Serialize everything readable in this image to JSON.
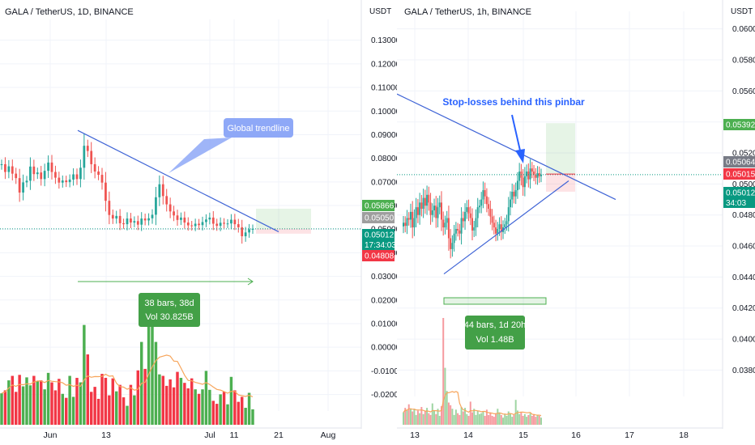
{
  "chart_data": [
    {
      "type": "candlestick",
      "title": "GALA / TetherUS, 1D, BINANCE",
      "y_unit_label": "USDT",
      "y_ticks": [
        "0.13000",
        "0.12000",
        "0.11000",
        "0.10000",
        "0.09000",
        "0.08000",
        "0.07000",
        "0.06000",
        "0.05000",
        "0.04000",
        "0.03000",
        "0.02000",
        "0.01000",
        "0.00000",
        "-0.01000",
        "-0.02000"
      ],
      "ylim": [
        -0.027,
        0.134
      ],
      "x_ticks": [
        "Jun",
        "13",
        "Jul",
        "11",
        "21",
        "Aug"
      ],
      "price_labels": [
        {
          "value": "0.05866",
          "color": "#4caf50"
        },
        {
          "value": "0.05050",
          "color": "#9e9e9e"
        },
        {
          "value": "0.05012",
          "color": "#089981",
          "extra": "17:34:03"
        },
        {
          "value": "0.04808",
          "color": "#f23645"
        }
      ],
      "annotations": [
        {
          "text": "Global trendline",
          "kind": "callout"
        },
        {
          "text": "38 bars, 38d",
          "kind": "range"
        },
        {
          "text": "Vol 30.825B",
          "kind": "range"
        }
      ],
      "closes": [
        0.0775,
        0.0742,
        0.0766,
        0.0735,
        0.0716,
        0.0655,
        0.0698,
        0.0705,
        0.0765,
        0.0733,
        0.074,
        0.0712,
        0.0747,
        0.0782,
        0.0742,
        0.0718,
        0.0697,
        0.0706,
        0.0699,
        0.071,
        0.0732,
        0.0712,
        0.076,
        0.0853,
        0.0831,
        0.0775,
        0.0744,
        0.073,
        0.0697,
        0.062,
        0.056,
        0.0545,
        0.0556,
        0.0525,
        0.0521,
        0.0545,
        0.0528,
        0.0534,
        0.0519,
        0.0545,
        0.0537,
        0.0546,
        0.0561,
        0.0635,
        0.069,
        0.064,
        0.0605,
        0.0575,
        0.0558,
        0.0539,
        0.0549,
        0.0528,
        0.0516,
        0.0513,
        0.0523,
        0.0517,
        0.053,
        0.0541,
        0.0549,
        0.0523,
        0.0514,
        0.0527,
        0.0523,
        0.0524,
        0.054,
        0.0521,
        0.0508,
        0.047,
        0.0486,
        0.0499,
        0.0501
      ],
      "volumes": [
        6.3,
        6.9,
        8.9,
        9.8,
        6.6,
        10.0,
        7.7,
        9.5,
        7.9,
        9.8,
        8.7,
        8.9,
        7.1,
        10.4,
        8.5,
        6.9,
        9.2,
        6.2,
        5.4,
        9.8,
        5.6,
        9.4,
        8.5,
        20.0,
        14.1,
        6.6,
        7.6,
        5.2,
        10.2,
        9.4,
        5.9,
        9.3,
        6.7,
        8.0,
        5.5,
        3.8,
        8.0,
        5.9,
        10.9,
        16.6,
        11.2,
        21.3,
        21.4,
        16.6,
        10.1,
        9.8,
        7.8,
        9.1,
        7.5,
        10.6,
        9.4,
        8.4,
        7.3,
        9.3,
        7.1,
        6.2,
        7.1,
        10.8,
        7.0,
        4.8,
        4.2,
        6.1,
        6.6,
        4.1,
        9.6,
        6.9,
        4.6,
        5.6,
        3.4,
        6.4,
        3.1
      ]
    },
    {
      "type": "candlestick",
      "title": "GALA / TetherUS, 1h, BINANCE",
      "y_unit_label": "USDT",
      "y_ticks": [
        "0.06000",
        "0.05800",
        "0.05600",
        "0.05400",
        "0.05200",
        "0.05000",
        "0.04800",
        "0.04600",
        "0.04400",
        "0.04200",
        "0.04000",
        "0.03800"
      ],
      "ylim": [
        0.0363,
        0.0604
      ],
      "x_ticks": [
        "13",
        "14",
        "15",
        "16",
        "17",
        "18"
      ],
      "price_labels": [
        {
          "value": "0.05392",
          "color": "#4caf50"
        },
        {
          "value": "0.05064",
          "color": "#787b86"
        },
        {
          "value": "0.05015",
          "color": "#f23645"
        },
        {
          "value": "0.05012",
          "color": "#089981",
          "extra": "34:03"
        }
      ],
      "annotations": [
        {
          "text": "Stop-losses behind this pinbar",
          "kind": "arrow-label"
        },
        {
          "text": "44 bars, 1d 20h",
          "kind": "range"
        },
        {
          "text": "Vol 1.48B",
          "kind": "range"
        }
      ],
      "closes": [
        0.0475,
        0.0473,
        0.0478,
        0.0477,
        0.0482,
        0.0472,
        0.0478,
        0.0485,
        0.048,
        0.0488,
        0.0484,
        0.0491,
        0.0486,
        0.0493,
        0.0488,
        0.048,
        0.0483,
        0.0486,
        0.0478,
        0.0485,
        0.0488,
        0.0477,
        0.0472,
        0.0475,
        0.0478,
        0.0465,
        0.0458,
        0.0462,
        0.0468,
        0.0471,
        0.047,
        0.0468,
        0.0478,
        0.0476,
        0.0482,
        0.0485,
        0.0481,
        0.0478,
        0.047,
        0.0472,
        0.0478,
        0.0485,
        0.0486,
        0.049,
        0.0496,
        0.0492,
        0.0487,
        0.0484,
        0.0479,
        0.0475,
        0.0472,
        0.0468,
        0.0471,
        0.0474,
        0.0469,
        0.0472,
        0.0474,
        0.0476,
        0.0485,
        0.049,
        0.0495,
        0.0492,
        0.0496,
        0.0502,
        0.0508,
        0.0504,
        0.0498,
        0.0505,
        0.0508,
        0.0503,
        0.051,
        0.0508,
        0.0506,
        0.0504,
        0.0507,
        0.0505,
        0.0506
      ],
      "volumes": [
        1.4,
        1.9,
        1.6,
        2.3,
        1.8,
        1.5,
        1.8,
        1.1,
        1.6,
        1.3,
        2.0,
        1.2,
        1.5,
        1.9,
        1.3,
        1.1,
        2.4,
        1.6,
        1.2,
        1.8,
        1.0,
        2.1,
        12.0,
        6.4,
        3.8,
        2.5,
        2.2,
        1.8,
        1.1,
        1.7,
        1.3,
        1.1,
        2.0,
        1.5,
        1.9,
        1.2,
        1.0,
        2.6,
        1.4,
        1.8,
        1.1,
        1.6,
        1.2,
        1.3,
        1.5,
        1.0,
        1.7,
        1.1,
        1.4,
        1.0,
        0.9,
        1.3,
        1.8,
        1.4,
        1.1,
        0.8,
        1.2,
        1.0,
        1.5,
        1.3,
        0.9,
        1.1,
        2.8,
        1.6,
        1.2,
        1.4,
        1.0,
        1.2,
        0.9,
        1.1,
        1.3,
        1.0,
        1.2,
        0.9,
        1.1,
        1.0,
        0.8
      ]
    }
  ]
}
